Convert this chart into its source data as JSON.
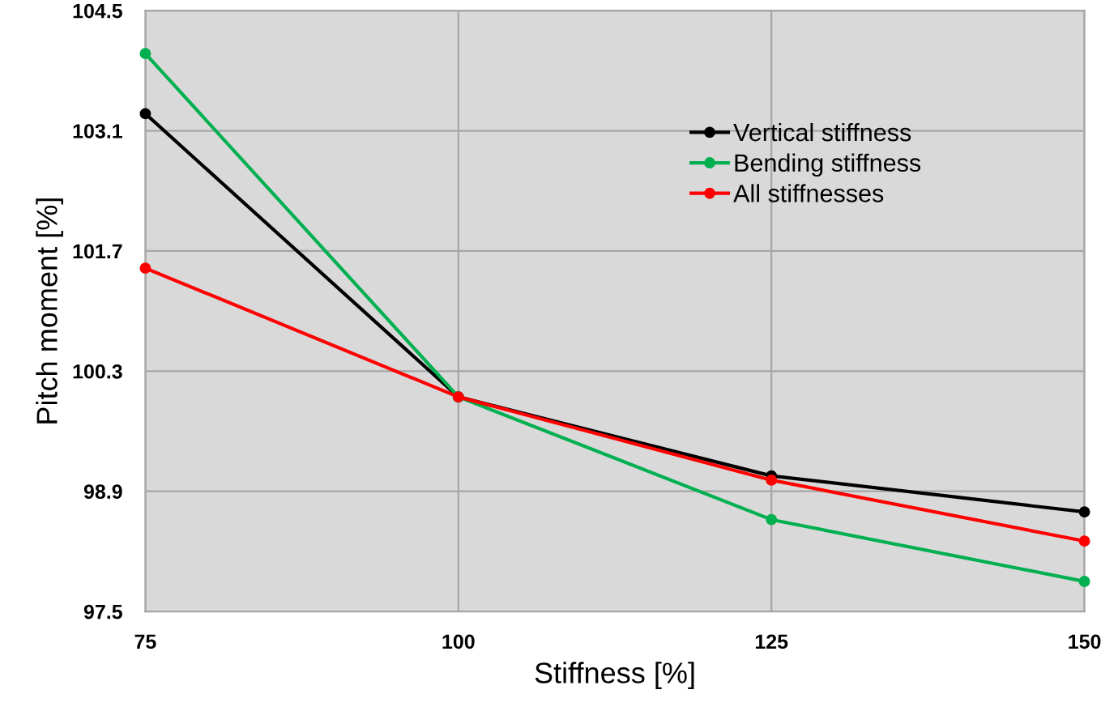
{
  "chart_data": {
    "type": "line",
    "xlabel": "Stiffness [%]",
    "ylabel": "Pitch moment [%]",
    "x": [
      75,
      100,
      125,
      150
    ],
    "series": [
      {
        "name": "Vertical stiffness",
        "color": "#000000",
        "values": [
          103.3,
          100.0,
          99.08,
          98.66
        ]
      },
      {
        "name": "Bending stiffness",
        "color": "#00b050",
        "values": [
          104.0,
          100.0,
          98.57,
          97.85
        ]
      },
      {
        "name": "All stiffnesses",
        "color": "#ff0000",
        "values": [
          101.5,
          100.0,
          99.03,
          98.32
        ]
      }
    ],
    "xlim": [
      75,
      150
    ],
    "xticks": [
      75,
      100,
      125,
      150
    ],
    "ylim": [
      97.5,
      104.5
    ],
    "yticks": [
      97.5,
      98.9,
      100.3,
      101.7,
      103.1,
      104.5
    ],
    "grid": true,
    "legend": "top right",
    "marker": "circle",
    "line_style": "solid"
  }
}
